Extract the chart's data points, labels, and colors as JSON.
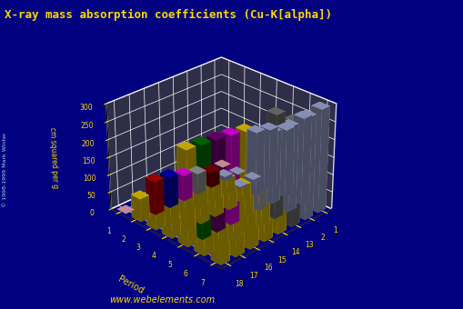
{
  "title": "X-ray mass absorption coefficients (Cu-K[alpha])",
  "zlabel": "cm squared per g",
  "period_label": "Period",
  "bg_color": "#000080",
  "title_color": "#FFD700",
  "watermark": "www.webelements.com",
  "copyright": "© 1998-1999 Mark Winter",
  "groups": [
    1,
    2,
    13,
    14,
    15,
    16,
    17,
    18
  ],
  "periods": [
    1,
    2,
    3,
    4,
    5,
    6,
    7
  ],
  "elev": 28,
  "azim": 45,
  "element_data": [
    [
      1,
      1,
      0.4,
      "#FFB6C1"
    ],
    [
      18,
      1,
      0.3,
      "#FFB6C1"
    ],
    [
      1,
      2,
      0.7,
      "#B0B8E8"
    ],
    [
      2,
      2,
      12.0,
      "#B0B8E8"
    ],
    [
      13,
      2,
      45.0,
      "#8B0000"
    ],
    [
      14,
      2,
      60.0,
      "#A9A9A9"
    ],
    [
      15,
      2,
      74.0,
      "#FF00FF"
    ],
    [
      16,
      2,
      89.0,
      "#0000CD"
    ],
    [
      17,
      2,
      95.0,
      "#CC0000"
    ],
    [
      18,
      2,
      66.0,
      "#FFD700"
    ],
    [
      1,
      3,
      6.0,
      "#B0B8E8"
    ],
    [
      2,
      3,
      4.0,
      "#B0B8E8"
    ],
    [
      13,
      3,
      48.0,
      "#FFD700"
    ],
    [
      14,
      3,
      60.0,
      "#FFD700"
    ],
    [
      15,
      3,
      75.0,
      "#FFD700"
    ],
    [
      16,
      3,
      90.0,
      "#FFD700"
    ],
    [
      17,
      3,
      95.0,
      "#FFD700"
    ],
    [
      18,
      3,
      66.0,
      "#FFD700"
    ],
    [
      1,
      4,
      175.0,
      "#B0B8E8"
    ],
    [
      2,
      4,
      185.0,
      "#B0B8E8"
    ],
    [
      13,
      4,
      49.0,
      "#FFD700"
    ],
    [
      14,
      4,
      68.0,
      "#FFD700"
    ],
    [
      15,
      4,
      72.0,
      "#FFD700"
    ],
    [
      16,
      4,
      83.0,
      "#FFD700"
    ],
    [
      17,
      4,
      90.0,
      "#FFD700"
    ],
    [
      18,
      4,
      52.0,
      "#FFD700"
    ],
    [
      1,
      5,
      195.0,
      "#B0B8E8"
    ],
    [
      2,
      5,
      205.0,
      "#B0B8E8"
    ],
    [
      13,
      5,
      200.0,
      "#C0C0C0"
    ],
    [
      14,
      5,
      245.0,
      "#FFD700"
    ],
    [
      15,
      5,
      252.0,
      "#FF00FF"
    ],
    [
      16,
      5,
      258.0,
      "#800080"
    ],
    [
      17,
      5,
      263.0,
      "#008000"
    ],
    [
      18,
      5,
      268.0,
      "#FFD700"
    ],
    [
      1,
      6,
      248.0,
      "#B0B8E8"
    ],
    [
      2,
      6,
      242.0,
      "#B0B8E8"
    ],
    [
      13,
      6,
      293.0,
      "#808080"
    ],
    [
      14,
      6,
      243.0,
      "#FFD700"
    ],
    [
      15,
      6,
      248.0,
      "#FFD700"
    ],
    [
      16,
      6,
      253.0,
      "#FFD700"
    ],
    [
      17,
      6,
      258.0,
      "#FFD700"
    ],
    [
      18,
      6,
      263.0,
      "#FFD700"
    ],
    [
      1,
      7,
      293.0,
      "#B0B8E8"
    ],
    [
      2,
      7,
      288.0,
      "#B0B8E8"
    ],
    [
      13,
      7,
      293.0,
      "#808080"
    ],
    [
      14,
      7,
      238.0,
      "#FFD700"
    ],
    [
      15,
      7,
      243.0,
      "#FFD700"
    ],
    [
      16,
      7,
      248.0,
      "#FFD700"
    ],
    [
      17,
      7,
      253.0,
      "#FFD700"
    ],
    [
      18,
      7,
      258.0,
      "#FFD700"
    ]
  ]
}
